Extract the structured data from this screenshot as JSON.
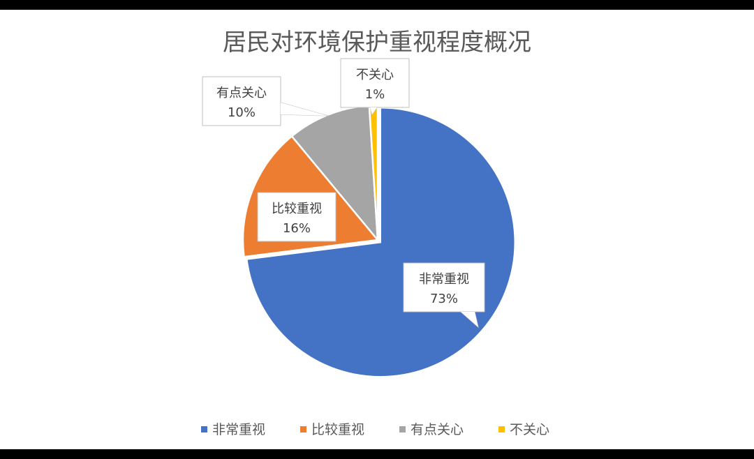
{
  "chart_data": {
    "type": "pie",
    "title": "居民对环境保护重视程度概况",
    "categories": [
      "非常重视",
      "比较重视",
      "有点关心",
      "不关心"
    ],
    "values": [
      73,
      16,
      10,
      1
    ],
    "value_labels": [
      "73%",
      "16%",
      "10%",
      "1%"
    ],
    "colors": [
      "#4472C4",
      "#ED7D31",
      "#A5A5A5",
      "#FFC000"
    ],
    "legend_position": "bottom",
    "exploded_slice": "非常重视"
  }
}
